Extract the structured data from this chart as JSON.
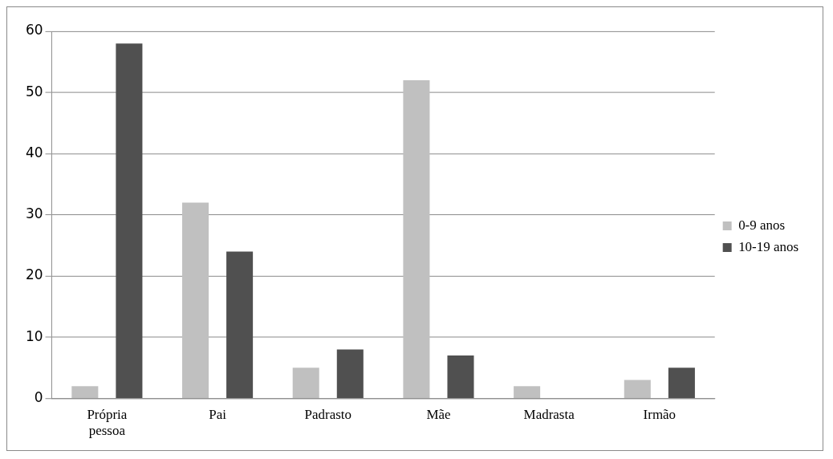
{
  "chart_data": {
    "type": "bar",
    "categories": [
      "Própria pessoa",
      "Pai",
      "Padrasto",
      "Mãe",
      "Madrasta",
      "Irmão"
    ],
    "series": [
      {
        "name": "0-9 anos",
        "color": "#c0c0c0",
        "values": [
          2,
          32,
          5,
          52,
          2,
          3
        ]
      },
      {
        "name": "10-19 anos",
        "color": "#505050",
        "values": [
          58,
          24,
          8,
          7,
          0,
          5
        ]
      }
    ],
    "ylim": [
      0,
      60
    ],
    "yticks": [
      0,
      10,
      20,
      30,
      40,
      50,
      60
    ],
    "grid": "y",
    "legend": "right"
  }
}
